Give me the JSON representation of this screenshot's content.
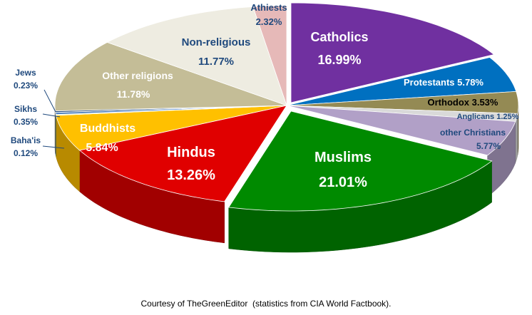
{
  "chart_data": {
    "type": "pie",
    "style": "3d-exploded",
    "title": "",
    "slices": [
      {
        "label": "Catholics",
        "value": 16.99,
        "text": "16.99%",
        "color": "#7030a0"
      },
      {
        "label": "Protestants",
        "value": 5.78,
        "text": "5.78%",
        "color": "#0070c0"
      },
      {
        "label": "Orthodox",
        "value": 3.53,
        "text": "3.53%",
        "color": "#948a54"
      },
      {
        "label": "Anglicans",
        "value": 1.25,
        "text": "1.25%",
        "color": "#d9d9d9"
      },
      {
        "label": "other Christians",
        "value": 5.77,
        "text": "5.77%",
        "color": "#b1a0c7"
      },
      {
        "label": "Muslims",
        "value": 21.01,
        "text": "21.01%",
        "color": "#008a00"
      },
      {
        "label": "Hindus",
        "value": 13.26,
        "text": "13.26%",
        "color": "#e00000"
      },
      {
        "label": "Buddhists",
        "value": 5.84,
        "text": "5.84%",
        "color": "#ffc000"
      },
      {
        "label": "Baha'is",
        "value": 0.12,
        "text": "0.12%",
        "color": "#ffff00"
      },
      {
        "label": "Sikhs",
        "value": 0.35,
        "text": "0.35%",
        "color": "#4f81bd"
      },
      {
        "label": "Jews",
        "value": 0.23,
        "text": "0.23%",
        "color": "#1f497d"
      },
      {
        "label": "Other religions",
        "value": 11.78,
        "text": "11.78%",
        "color": "#c4bd97"
      },
      {
        "label": "Non-religious",
        "value": 11.77,
        "text": "11.77%",
        "color": "#eeece1"
      },
      {
        "label": "Athiests",
        "value": 2.32,
        "text": "2.32%",
        "color": "#e6b9b8"
      }
    ]
  },
  "caption": "Courtesy of TheGreenEditor  (statistics from CIA World Factbook)."
}
